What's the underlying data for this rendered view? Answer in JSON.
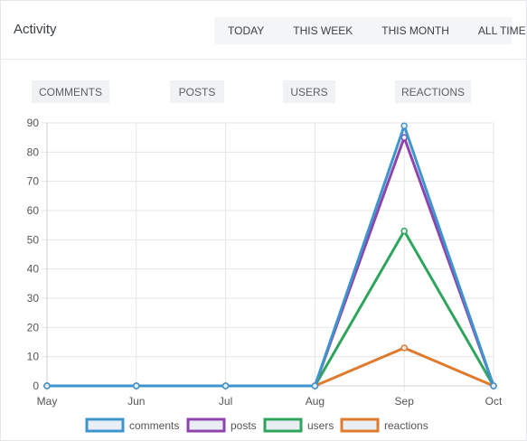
{
  "header": {
    "title": "Activity",
    "tabs": [
      "TODAY",
      "THIS WEEK",
      "THIS MONTH",
      "ALL TIME"
    ]
  },
  "metric_buttons": [
    "COMMENTS",
    "POSTS",
    "USERS",
    "REACTIONS"
  ],
  "colors": {
    "comments": "#3e95cd",
    "posts": "#8e44ad",
    "users": "#2ea55c",
    "reactions": "#e07b2e",
    "grid": "#e6e6e6"
  },
  "chart_data": {
    "type": "line",
    "title": "",
    "xlabel": "",
    "ylabel": "",
    "categories": [
      "May",
      "Jun",
      "Jul",
      "Aug",
      "Sep",
      "Oct"
    ],
    "ylim": [
      0,
      90
    ],
    "yticks": [
      0,
      10,
      20,
      30,
      40,
      50,
      60,
      70,
      80,
      90
    ],
    "grid": true,
    "legend_position": "bottom",
    "series": [
      {
        "name": "comments",
        "color": "#3e95cd",
        "values": [
          0,
          0,
          0,
          0,
          89,
          0
        ]
      },
      {
        "name": "posts",
        "color": "#8e44ad",
        "values": [
          0,
          0,
          0,
          0,
          85,
          0
        ]
      },
      {
        "name": "users",
        "color": "#2ea55c",
        "values": [
          0,
          0,
          0,
          0,
          53,
          0
        ]
      },
      {
        "name": "reactions",
        "color": "#e07b2e",
        "values": [
          0,
          0,
          0,
          0,
          13,
          0
        ]
      }
    ]
  }
}
